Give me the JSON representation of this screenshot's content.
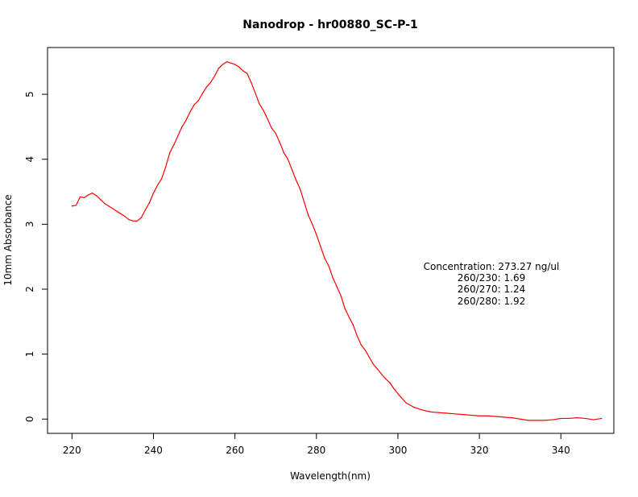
{
  "chart_data": {
    "type": "line",
    "title": "Nanodrop - hr00880_SC-P-1",
    "xlabel": "Wavelength(nm)",
    "ylabel": "10mm Absorbance",
    "xlim": [
      214,
      353
    ],
    "ylim": [
      -0.22,
      5.72
    ],
    "x_ticks": [
      "220",
      "240",
      "260",
      "280",
      "300",
      "320",
      "340"
    ],
    "y_ticks": [
      "0",
      "1",
      "2",
      "3",
      "4",
      "5"
    ],
    "grid": false,
    "series_color": "#ff0000",
    "series": [
      {
        "x": [
          220,
          221,
          222,
          223,
          224,
          225,
          226,
          227,
          228,
          229,
          230,
          231,
          232,
          233,
          234,
          235,
          236,
          237,
          238,
          239,
          240,
          241,
          242,
          243,
          244,
          245,
          246,
          247,
          248,
          249,
          250,
          251,
          252,
          253,
          254,
          255,
          256,
          257,
          258,
          259,
          260,
          261,
          262,
          263,
          264,
          265,
          266,
          267,
          268,
          269,
          270,
          271,
          272,
          273,
          274,
          275,
          276,
          277,
          278,
          279,
          280,
          281,
          282,
          283,
          284,
          285,
          286,
          287,
          288,
          289,
          290,
          291,
          292,
          293,
          294,
          295,
          296,
          297,
          298,
          299,
          300,
          302,
          304,
          306,
          308,
          310,
          312,
          314,
          316,
          318,
          320,
          322,
          324,
          326,
          328,
          330,
          332,
          334,
          336,
          338,
          340,
          342,
          344,
          346,
          348,
          350
        ],
        "y": [
          3.28,
          3.29,
          3.42,
          3.41,
          3.45,
          3.48,
          3.44,
          3.38,
          3.32,
          3.28,
          3.24,
          3.2,
          3.16,
          3.12,
          3.07,
          3.05,
          3.05,
          3.1,
          3.22,
          3.33,
          3.48,
          3.6,
          3.7,
          3.88,
          4.1,
          4.22,
          4.36,
          4.5,
          4.6,
          4.73,
          4.84,
          4.9,
          5.01,
          5.11,
          5.18,
          5.28,
          5.4,
          5.46,
          5.5,
          5.48,
          5.46,
          5.42,
          5.36,
          5.32,
          5.18,
          5.02,
          4.85,
          4.75,
          4.62,
          4.48,
          4.4,
          4.26,
          4.1,
          4.0,
          3.84,
          3.68,
          3.54,
          3.34,
          3.14,
          3.0,
          2.84,
          2.66,
          2.48,
          2.36,
          2.18,
          2.04,
          1.9,
          1.7,
          1.57,
          1.45,
          1.28,
          1.14,
          1.06,
          0.95,
          0.84,
          0.77,
          0.69,
          0.62,
          0.56,
          0.47,
          0.39,
          0.25,
          0.18,
          0.14,
          0.11,
          0.1,
          0.09,
          0.08,
          0.07,
          0.06,
          0.05,
          0.05,
          0.04,
          0.03,
          0.02,
          0.0,
          -0.02,
          -0.02,
          -0.02,
          -0.01,
          0.01,
          0.01,
          0.02,
          0.01,
          -0.01,
          0.01
        ]
      }
    ],
    "annotations": [
      "Concentration: 273.27 ng/ul",
      "260/230: 1.69",
      "260/270: 1.24",
      "260/280: 1.92"
    ]
  }
}
